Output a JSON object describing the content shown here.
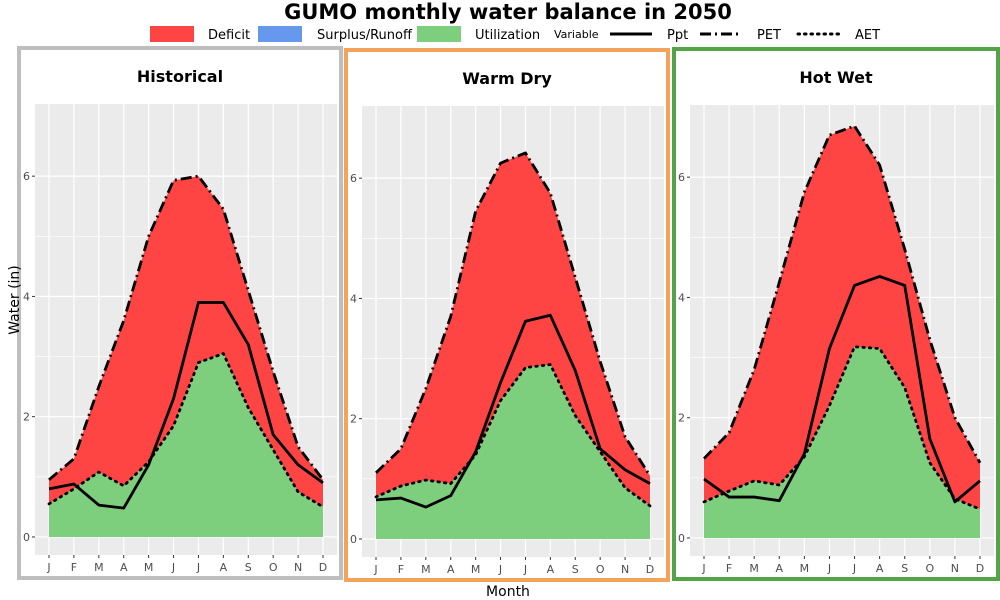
{
  "colors": {
    "deficit": "#ff4444",
    "surplus": "#6699ee",
    "utilization": "#7dce7d",
    "panel_bg": "#ebebeb",
    "grid": "#ffffff",
    "line": "#000000"
  },
  "chart_data": {
    "type": "area",
    "title": "GUMO monthly water balance in 2050",
    "xlabel": "Month",
    "ylabel": "Water (in)",
    "ylim": [
      -0.3,
      7.2
    ],
    "yticks": [
      0,
      2,
      4,
      6
    ],
    "grid": true,
    "legend": {
      "position": "top",
      "fill_title": "",
      "fill_entries": [
        {
          "label": "Deficit",
          "color": "#ff4444"
        },
        {
          "label": "Surplus/Runoff",
          "color": "#6699ee"
        },
        {
          "label": "Utilization",
          "color": "#7dce7d"
        }
      ],
      "line_title": "Variable",
      "line_entries": [
        {
          "label": "Ppt",
          "style": "solid"
        },
        {
          "label": "PET",
          "style": "dashdot"
        },
        {
          "label": "AET",
          "style": "dotted"
        }
      ]
    },
    "categories": [
      "J",
      "F",
      "M",
      "A",
      "M",
      "J",
      "J",
      "A",
      "S",
      "O",
      "N",
      "D"
    ],
    "panels": [
      {
        "title": "Historical",
        "border_color": "#bebebe",
        "ppt": [
          0.8,
          0.88,
          0.53,
          0.48,
          1.2,
          2.3,
          3.9,
          3.9,
          3.2,
          1.7,
          1.2,
          0.9
        ],
        "pet": [
          0.95,
          1.3,
          2.5,
          3.6,
          5.0,
          5.93,
          6.0,
          5.45,
          4.1,
          2.75,
          1.5,
          0.95
        ],
        "aet": [
          0.55,
          0.8,
          1.08,
          0.85,
          1.25,
          1.85,
          2.9,
          3.05,
          2.15,
          1.45,
          0.75,
          0.5
        ]
      },
      {
        "title": "Warm Dry",
        "border_color": "#f4a35a",
        "ppt": [
          0.65,
          0.68,
          0.53,
          0.72,
          1.45,
          2.6,
          3.62,
          3.72,
          2.8,
          1.5,
          1.15,
          0.92
        ],
        "pet": [
          1.1,
          1.5,
          2.5,
          3.7,
          5.45,
          6.25,
          6.42,
          5.75,
          4.35,
          2.95,
          1.7,
          1.05
        ],
        "aet": [
          0.7,
          0.88,
          0.98,
          0.92,
          1.4,
          2.3,
          2.85,
          2.9,
          2.05,
          1.45,
          0.85,
          0.55
        ]
      },
      {
        "title": "Hot Wet",
        "border_color": "#52a447",
        "ppt": [
          0.98,
          0.68,
          0.68,
          0.62,
          1.4,
          3.15,
          4.2,
          4.35,
          4.2,
          1.65,
          0.6,
          0.95
        ],
        "pet": [
          1.32,
          1.75,
          2.8,
          4.25,
          5.75,
          6.7,
          6.85,
          6.2,
          4.8,
          3.3,
          2.0,
          1.25
        ],
        "aet": [
          0.6,
          0.78,
          0.95,
          0.88,
          1.35,
          2.2,
          3.18,
          3.15,
          2.5,
          1.25,
          0.65,
          0.48
        ]
      }
    ]
  }
}
